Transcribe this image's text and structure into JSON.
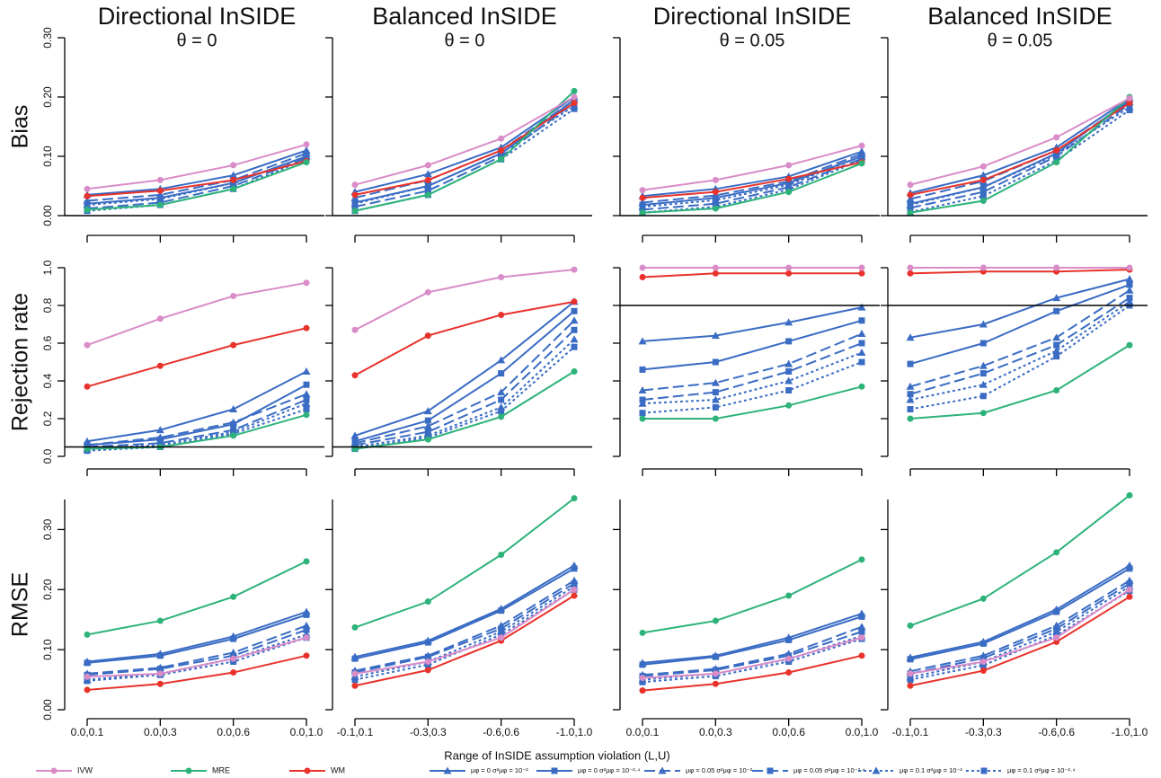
{
  "x_label": "Range of InSIDE assumption violation (L,U)",
  "chart_data": [
    {
      "type": "line",
      "title": "Directional InSIDE",
      "subtitle": "θ = 0",
      "ylabel": "Bias",
      "categories": [
        null,
        null,
        null,
        null
      ],
      "ylim": [
        0,
        0.3
      ],
      "yticks": [
        {
          "value": 0,
          "label": "0.00"
        },
        {
          "value": 0.1,
          "label": "0.10"
        },
        {
          "value": 0.2,
          "label": "0.20"
        },
        {
          "value": 0.3,
          "label": "0.30"
        }
      ],
      "hline": 0,
      "series": [
        {
          "name": "IVW",
          "color": "#d98cc8",
          "dash": "solid",
          "marker": "circle",
          "values": [
            0.045,
            0.06,
            0.085,
            0.12
          ]
        },
        {
          "name": "MRE",
          "color": "#2db37a",
          "dash": "solid",
          "marker": "circle",
          "values": [
            0.01,
            0.018,
            0.045,
            0.09
          ]
        },
        {
          "name": "WM",
          "color": "#e8322b",
          "dash": "solid",
          "marker": "circle",
          "values": [
            0.033,
            0.042,
            0.06,
            0.092
          ]
        },
        {
          "name": "μφ = 0  σ²μφ = 10⁻²",
          "color": "#3a6cc4",
          "dash": "solid",
          "marker": "triangle",
          "values": [
            0.035,
            0.045,
            0.068,
            0.11
          ]
        },
        {
          "name": "μφ = 0  σ²μφ = 10⁻²·⁴",
          "color": "#3a6cc4",
          "dash": "solid",
          "marker": "square",
          "values": [
            0.02,
            0.03,
            0.055,
            0.1
          ]
        },
        {
          "name": "μφ = 0.05  σ²μφ = 10⁻²",
          "color": "#3a6cc4",
          "dash": "dashed",
          "marker": "triangle",
          "values": [
            0.025,
            0.035,
            0.06,
            0.105
          ]
        },
        {
          "name": "μφ = 0.05  σ²μφ = 10⁻²·⁴",
          "color": "#3a6cc4",
          "dash": "dashed",
          "marker": "square",
          "values": [
            0.012,
            0.022,
            0.05,
            0.097
          ]
        },
        {
          "name": "μφ = 0.1  σ²μφ = 10⁻²",
          "color": "#3a6cc4",
          "dash": "dotted",
          "marker": "triangle",
          "values": [
            0.018,
            0.028,
            0.055,
            0.1
          ]
        },
        {
          "name": "μφ = 0.1  σ²μφ = 10⁻²·⁴",
          "color": "#3a6cc4",
          "dash": "dotted",
          "marker": "square",
          "values": [
            0.008,
            0.018,
            0.045,
            0.095
          ]
        }
      ]
    },
    {
      "type": "line",
      "title": "Balanced InSIDE",
      "subtitle": "θ = 0",
      "categories": [
        null,
        null,
        null,
        null
      ],
      "ylim": [
        0,
        0.3
      ],
      "yticks": [
        0,
        0.1,
        0.2,
        0.3
      ],
      "hline": 0,
      "series": [
        {
          "values": [
            0.052,
            0.085,
            0.13,
            0.2
          ]
        },
        {
          "values": [
            0.008,
            0.035,
            0.095,
            0.21
          ]
        },
        {
          "values": [
            0.035,
            0.06,
            0.11,
            0.19
          ]
        },
        {
          "values": [
            0.04,
            0.07,
            0.115,
            0.2
          ]
        },
        {
          "values": [
            0.022,
            0.05,
            0.105,
            0.195
          ]
        },
        {
          "values": [
            0.03,
            0.06,
            0.11,
            0.195
          ]
        },
        {
          "values": [
            0.015,
            0.042,
            0.1,
            0.19
          ]
        },
        {
          "values": [
            0.02,
            0.05,
            0.105,
            0.185
          ]
        },
        {
          "values": [
            0.008,
            0.035,
            0.095,
            0.18
          ]
        }
      ]
    },
    {
      "type": "line",
      "title": "Directional InSIDE",
      "subtitle": "θ = 0.05",
      "categories": [
        null,
        null,
        null,
        null
      ],
      "ylim": [
        0,
        0.3
      ],
      "yticks": [
        0,
        0.1,
        0.2,
        0.3
      ],
      "hline": 0,
      "series": [
        {
          "values": [
            0.043,
            0.06,
            0.085,
            0.118
          ]
        },
        {
          "values": [
            0.005,
            0.012,
            0.04,
            0.088
          ]
        },
        {
          "values": [
            0.03,
            0.04,
            0.062,
            0.09
          ]
        },
        {
          "values": [
            0.033,
            0.045,
            0.066,
            0.108
          ]
        },
        {
          "values": [
            0.018,
            0.03,
            0.055,
            0.1
          ]
        },
        {
          "values": [
            0.022,
            0.034,
            0.058,
            0.104
          ]
        },
        {
          "values": [
            0.01,
            0.02,
            0.048,
            0.096
          ]
        },
        {
          "values": [
            0.015,
            0.026,
            0.052,
            0.1
          ]
        },
        {
          "values": [
            0.005,
            0.015,
            0.044,
            0.094
          ]
        }
      ]
    },
    {
      "type": "line",
      "title": "Balanced InSIDE",
      "subtitle": "θ = 0.05",
      "categories": [
        null,
        null,
        null,
        null
      ],
      "ylim": [
        0,
        0.3
      ],
      "yticks": [
        0,
        0.1,
        0.2,
        0.3
      ],
      "hline": 0,
      "series": [
        {
          "values": [
            0.052,
            0.083,
            0.132,
            0.198
          ]
        },
        {
          "values": [
            0.005,
            0.025,
            0.09,
            0.2
          ]
        },
        {
          "values": [
            0.035,
            0.06,
            0.11,
            0.19
          ]
        },
        {
          "values": [
            0.038,
            0.068,
            0.115,
            0.198
          ]
        },
        {
          "values": [
            0.02,
            0.048,
            0.105,
            0.195
          ]
        },
        {
          "values": [
            0.028,
            0.058,
            0.11,
            0.192
          ]
        },
        {
          "values": [
            0.013,
            0.04,
            0.1,
            0.188
          ]
        },
        {
          "values": [
            0.018,
            0.048,
            0.103,
            0.183
          ]
        },
        {
          "values": [
            0.006,
            0.033,
            0.093,
            0.178
          ]
        }
      ]
    },
    {
      "type": "line",
      "ylabel": "Rejection rate",
      "categories": [
        null,
        null,
        null,
        null
      ],
      "ylim": [
        0,
        1
      ],
      "yticks": [
        {
          "value": 0,
          "label": "0.0"
        },
        {
          "value": 0.2,
          "label": "0.2"
        },
        {
          "value": 0.4,
          "label": "0.4"
        },
        {
          "value": 0.6,
          "label": "0.6"
        },
        {
          "value": 0.8,
          "label": "0.8"
        },
        {
          "value": 1,
          "label": "1.0"
        }
      ],
      "hline": 0.05,
      "series": [
        {
          "values": [
            0.59,
            0.73,
            0.85,
            0.92
          ]
        },
        {
          "values": [
            0.04,
            0.05,
            0.11,
            0.22
          ]
        },
        {
          "values": [
            0.37,
            0.48,
            0.59,
            0.68
          ]
        },
        {
          "values": [
            0.08,
            0.14,
            0.25,
            0.45
          ]
        },
        {
          "values": [
            0.06,
            0.09,
            0.17,
            0.38
          ]
        },
        {
          "values": [
            0.06,
            0.1,
            0.18,
            0.33
          ]
        },
        {
          "values": [
            0.05,
            0.07,
            0.14,
            0.3
          ]
        },
        {
          "values": [
            0.04,
            0.06,
            0.13,
            0.28
          ]
        },
        {
          "values": [
            0.03,
            0.05,
            0.12,
            0.25
          ]
        }
      ]
    },
    {
      "type": "line",
      "categories": [
        null,
        null,
        null,
        null
      ],
      "ylim": [
        0,
        1
      ],
      "yticks": [
        0,
        0.2,
        0.4,
        0.6,
        0.8,
        1
      ],
      "hline": 0.05,
      "series": [
        {
          "values": [
            0.67,
            0.87,
            0.95,
            0.99
          ]
        },
        {
          "values": [
            0.04,
            0.09,
            0.21,
            0.45
          ]
        },
        {
          "values": [
            0.43,
            0.64,
            0.75,
            0.82
          ]
        },
        {
          "values": [
            0.11,
            0.24,
            0.51,
            0.82
          ]
        },
        {
          "values": [
            0.08,
            0.19,
            0.44,
            0.77
          ]
        },
        {
          "values": [
            0.07,
            0.16,
            0.34,
            0.72
          ]
        },
        {
          "values": [
            0.06,
            0.13,
            0.3,
            0.67
          ]
        },
        {
          "values": [
            0.05,
            0.11,
            0.26,
            0.62
          ]
        },
        {
          "values": [
            0.04,
            0.1,
            0.24,
            0.58
          ]
        }
      ]
    },
    {
      "type": "line",
      "categories": [
        null,
        null,
        null,
        null
      ],
      "ylim": [
        0,
        1
      ],
      "yticks": [
        0,
        0.2,
        0.4,
        0.6,
        0.8,
        1
      ],
      "hline": 0.8,
      "series": [
        {
          "values": [
            1.0,
            1.0,
            1.0,
            1.0
          ]
        },
        {
          "values": [
            0.2,
            0.2,
            0.27,
            0.37
          ]
        },
        {
          "values": [
            0.95,
            0.97,
            0.97,
            0.97
          ]
        },
        {
          "values": [
            0.61,
            0.64,
            0.71,
            0.79
          ]
        },
        {
          "values": [
            0.46,
            0.5,
            0.61,
            0.72
          ]
        },
        {
          "values": [
            0.35,
            0.39,
            0.49,
            0.65
          ]
        },
        {
          "values": [
            0.3,
            0.34,
            0.45,
            0.6
          ]
        },
        {
          "values": [
            0.28,
            0.3,
            0.4,
            0.55
          ]
        },
        {
          "values": [
            0.23,
            0.26,
            0.35,
            0.5
          ]
        }
      ]
    },
    {
      "type": "line",
      "categories": [
        null,
        null,
        null,
        null
      ],
      "ylim": [
        0,
        1
      ],
      "yticks": [
        0,
        0.2,
        0.4,
        0.6,
        0.8,
        1
      ],
      "hline": 0.8,
      "series": [
        {
          "values": [
            1.0,
            1.0,
            1.0,
            1.0
          ]
        },
        {
          "values": [
            0.2,
            0.23,
            0.35,
            0.59
          ]
        },
        {
          "values": [
            0.97,
            0.98,
            0.98,
            0.99
          ]
        },
        {
          "values": [
            0.63,
            0.7,
            0.84,
            0.94
          ]
        },
        {
          "values": [
            0.49,
            0.6,
            0.77,
            0.91
          ]
        },
        {
          "values": [
            0.37,
            0.48,
            0.63,
            0.88
          ]
        },
        {
          "values": [
            0.33,
            0.44,
            0.59,
            0.84
          ]
        },
        {
          "values": [
            0.3,
            0.38,
            0.56,
            0.82
          ]
        },
        {
          "values": [
            0.25,
            0.32,
            0.53,
            0.8
          ]
        }
      ]
    },
    {
      "type": "line",
      "ylabel": "RMSE",
      "categories": [
        "0.0,0.1",
        "0.0,0.3",
        "0.0,0.6",
        "0.0,1.0"
      ],
      "ylim": [
        0,
        0.35
      ],
      "yticks": [
        {
          "value": 0,
          "label": "0.00"
        },
        {
          "value": 0.1,
          "label": "0.10"
        },
        {
          "value": 0.2,
          "label": "0.20"
        },
        {
          "value": 0.3,
          "label": "0.30"
        }
      ],
      "series": [
        {
          "values": [
            0.055,
            0.06,
            0.085,
            0.12
          ]
        },
        {
          "values": [
            0.125,
            0.148,
            0.188,
            0.247
          ]
        },
        {
          "values": [
            0.033,
            0.043,
            0.062,
            0.09
          ]
        },
        {
          "values": [
            0.08,
            0.093,
            0.122,
            0.163
          ]
        },
        {
          "values": [
            0.078,
            0.09,
            0.118,
            0.158
          ]
        },
        {
          "values": [
            0.06,
            0.07,
            0.095,
            0.14
          ]
        },
        {
          "values": [
            0.058,
            0.068,
            0.09,
            0.133
          ]
        },
        {
          "values": [
            0.05,
            0.06,
            0.085,
            0.125
          ]
        },
        {
          "values": [
            0.048,
            0.058,
            0.08,
            0.12
          ]
        }
      ]
    },
    {
      "type": "line",
      "categories": [
        "-0.1,0.1",
        "-0.3,0.3",
        "-0.6,0.6",
        "-1.0,1.0"
      ],
      "ylim": [
        0,
        0.35
      ],
      "yticks": [
        0,
        0.1,
        0.2,
        0.3
      ],
      "series": [
        {
          "values": [
            0.06,
            0.08,
            0.12,
            0.2
          ]
        },
        {
          "values": [
            0.137,
            0.18,
            0.258,
            0.352
          ]
        },
        {
          "values": [
            0.04,
            0.066,
            0.115,
            0.19
          ]
        },
        {
          "values": [
            0.088,
            0.115,
            0.168,
            0.24
          ]
        },
        {
          "values": [
            0.085,
            0.112,
            0.165,
            0.235
          ]
        },
        {
          "values": [
            0.065,
            0.09,
            0.14,
            0.215
          ]
        },
        {
          "values": [
            0.062,
            0.088,
            0.135,
            0.21
          ]
        },
        {
          "values": [
            0.055,
            0.08,
            0.13,
            0.205
          ]
        },
        {
          "values": [
            0.05,
            0.075,
            0.125,
            0.2
          ]
        }
      ]
    },
    {
      "type": "line",
      "categories": [
        "0.0,0.1",
        "0.0,0.3",
        "0.0,0.6",
        "0.0,1.0"
      ],
      "ylim": [
        0,
        0.35
      ],
      "yticks": [
        0,
        0.1,
        0.2,
        0.3
      ],
      "series": [
        {
          "values": [
            0.053,
            0.06,
            0.085,
            0.12
          ]
        },
        {
          "values": [
            0.128,
            0.148,
            0.19,
            0.25
          ]
        },
        {
          "values": [
            0.032,
            0.043,
            0.062,
            0.09
          ]
        },
        {
          "values": [
            0.078,
            0.09,
            0.12,
            0.16
          ]
        },
        {
          "values": [
            0.075,
            0.088,
            0.116,
            0.155
          ]
        },
        {
          "values": [
            0.058,
            0.068,
            0.093,
            0.138
          ]
        },
        {
          "values": [
            0.056,
            0.066,
            0.09,
            0.13
          ]
        },
        {
          "values": [
            0.05,
            0.06,
            0.084,
            0.123
          ]
        },
        {
          "values": [
            0.046,
            0.056,
            0.08,
            0.118
          ]
        }
      ]
    },
    {
      "type": "line",
      "categories": [
        "-0.1,0.1",
        "-0.3,0.3",
        "-0.6,0.6",
        "-1.0,1.0"
      ],
      "ylim": [
        0,
        0.35
      ],
      "yticks": [
        0,
        0.1,
        0.2,
        0.3
      ],
      "series": [
        {
          "values": [
            0.06,
            0.08,
            0.12,
            0.2
          ]
        },
        {
          "values": [
            0.14,
            0.185,
            0.262,
            0.357
          ]
        },
        {
          "values": [
            0.04,
            0.065,
            0.113,
            0.188
          ]
        },
        {
          "values": [
            0.087,
            0.113,
            0.167,
            0.24
          ]
        },
        {
          "values": [
            0.084,
            0.11,
            0.163,
            0.235
          ]
        },
        {
          "values": [
            0.064,
            0.09,
            0.14,
            0.215
          ]
        },
        {
          "values": [
            0.06,
            0.086,
            0.135,
            0.21
          ]
        },
        {
          "values": [
            0.054,
            0.08,
            0.13,
            0.205
          ]
        },
        {
          "values": [
            0.05,
            0.074,
            0.124,
            0.198
          ]
        }
      ]
    }
  ]
}
